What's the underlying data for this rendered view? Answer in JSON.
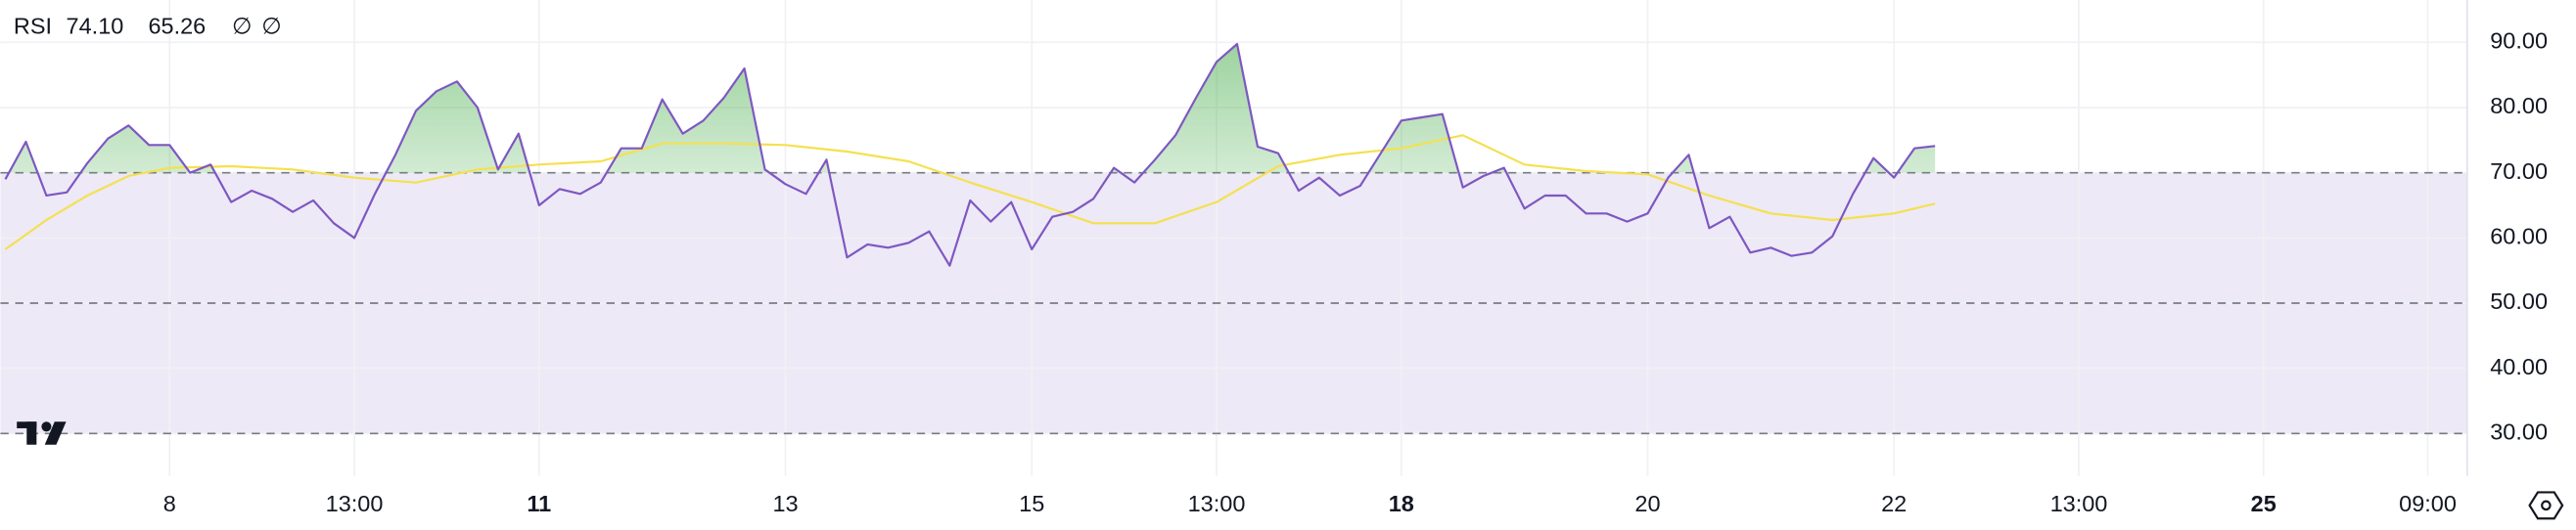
{
  "chart_data": {
    "type": "line",
    "title": "RSI",
    "header_values": [
      "74.10",
      "65.26"
    ],
    "header_icons": [
      "∅",
      "∅"
    ],
    "series": [
      {
        "color": "#7e57c2",
        "x": [
          -8,
          -7,
          -6,
          -5,
          -4,
          -3,
          -2,
          -1,
          0,
          1,
          2,
          3,
          4,
          5,
          6,
          7,
          8,
          9,
          10,
          11,
          12,
          13,
          14,
          15,
          16,
          17,
          18,
          19,
          20,
          21,
          22,
          23,
          24,
          25,
          26,
          27,
          28,
          29,
          30,
          31,
          32,
          33,
          34,
          35,
          36,
          37,
          38,
          39,
          40,
          41,
          42,
          43,
          44,
          45,
          46,
          47,
          48,
          49,
          50,
          51,
          52,
          53,
          54,
          55,
          56,
          57,
          58,
          59,
          60,
          61,
          62,
          63,
          64,
          65,
          66,
          67,
          68,
          69,
          70,
          71,
          72,
          73,
          74,
          75,
          76,
          77,
          78,
          79,
          80,
          81,
          82,
          83,
          84,
          85,
          86
        ],
        "values": [
          69,
          74.75,
          66.5,
          67,
          71.5,
          75.25,
          77.25,
          74.25,
          74.25,
          70,
          71.25,
          65.5,
          67.25,
          66,
          64,
          65.75,
          62.25,
          60,
          66.75,
          72.75,
          79.5,
          82.5,
          84,
          80,
          70.5,
          76,
          65,
          67.5,
          66.75,
          68.5,
          73.75,
          73.75,
          81.25,
          76,
          78,
          81.5,
          86,
          70.5,
          68.25,
          66.75,
          72,
          57,
          59,
          58.5,
          59.25,
          61,
          55.75,
          65.75,
          62.5,
          65.5,
          58.25,
          63.25,
          64,
          66,
          70.75,
          68.5,
          72,
          75.75,
          81.5,
          87,
          89.75,
          74,
          73,
          67.25,
          69.25,
          66.5,
          68,
          73,
          78,
          78.5,
          79,
          67.75,
          69.5,
          70.75,
          64.5,
          66.5,
          66.5,
          63.75,
          63.75,
          62.5,
          63.75,
          69.25,
          72.75,
          61.5,
          63.25,
          57.75,
          58.5,
          57.25,
          57.75,
          60.25,
          66.75,
          72.25,
          69.25,
          73.75,
          74.1
        ]
      },
      {
        "color": "#f5e04f",
        "x": [
          -8,
          -6,
          -4,
          -2,
          0,
          3,
          6,
          9,
          12,
          15,
          18,
          21,
          24,
          27,
          30,
          33,
          36,
          39,
          42,
          45,
          48,
          51,
          54,
          57,
          60,
          63,
          66,
          69,
          72,
          75,
          78,
          81,
          84,
          86
        ],
        "values": [
          58.25,
          62.75,
          66.5,
          69.5,
          70.75,
          71,
          70.5,
          69.25,
          68.5,
          70.5,
          71.25,
          71.75,
          74.5,
          74.5,
          74.25,
          73.25,
          71.75,
          68.5,
          65.5,
          62.25,
          62.25,
          65.5,
          71,
          72.75,
          73.75,
          75.75,
          71.25,
          70.25,
          69.75,
          66.5,
          63.75,
          62.75,
          63.75,
          65.26
        ]
      }
    ],
    "xlim": [
      -8.24,
      111.92
    ],
    "xticks": [
      {
        "value": 0,
        "label": "8"
      },
      {
        "value": 9,
        "label": "13:00"
      },
      {
        "value": 18,
        "label": "11",
        "bold": true
      },
      {
        "value": 30,
        "label": "13"
      },
      {
        "value": 42,
        "label": "15"
      },
      {
        "value": 51,
        "label": "13:00"
      },
      {
        "value": 60,
        "label": "18",
        "bold": true
      },
      {
        "value": 72,
        "label": "20"
      },
      {
        "value": 84,
        "label": "22"
      },
      {
        "value": 93,
        "label": "13:00"
      },
      {
        "value": 102,
        "label": "25",
        "bold": true
      },
      {
        "value": 110,
        "label": "09:00"
      }
    ],
    "ylim": [
      23.5,
      96.5
    ],
    "yticks": [
      {
        "value": 30,
        "label": "30.00"
      },
      {
        "value": 40,
        "label": "40.00"
      },
      {
        "value": 50,
        "label": "50.00"
      },
      {
        "value": 60,
        "label": "60.00"
      },
      {
        "value": 70,
        "label": "70.00"
      },
      {
        "value": 80,
        "label": "80.00"
      },
      {
        "value": 90,
        "label": "90.00"
      }
    ],
    "upper_band": 70,
    "middle_band": 50,
    "lower_band": 30,
    "band_color": "#ede9f6",
    "overbought_color": "#4caf50",
    "grid": true
  }
}
